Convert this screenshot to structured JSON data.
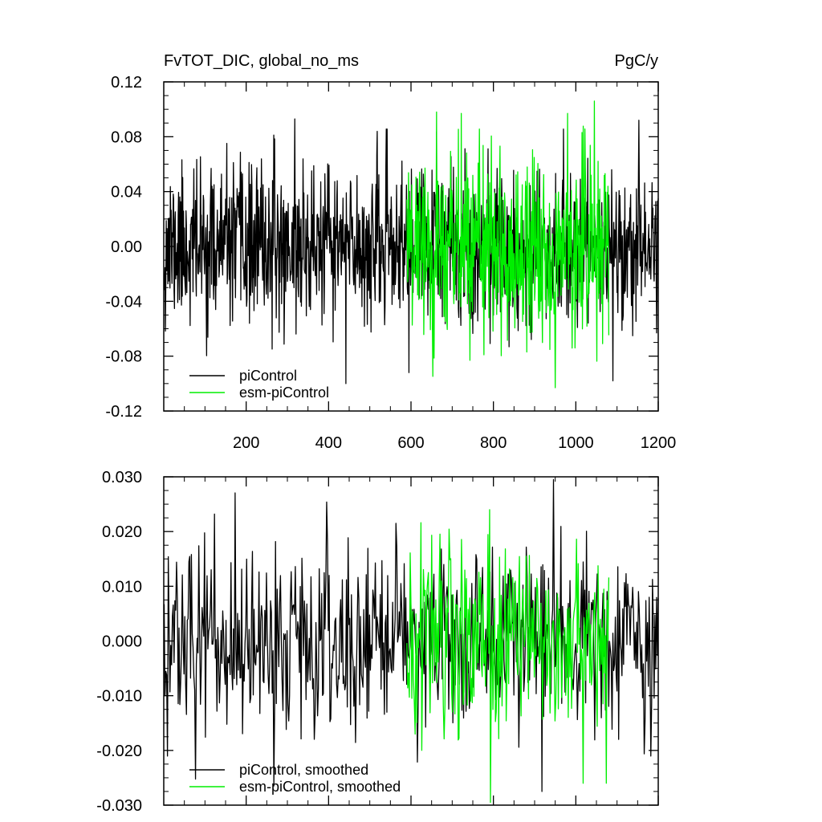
{
  "colors": {
    "piControl": "#000000",
    "esm_piControl": "#00ee00",
    "axis": "#000000",
    "background": "#ffffff"
  },
  "chart_data": [
    {
      "type": "line",
      "title": "FvTOT_DIC, global_no_ms",
      "units": "PgC/y",
      "xlabel": "",
      "ylabel": "",
      "xlim": [
        0,
        1200
      ],
      "ylim": [
        -0.12,
        0.12
      ],
      "xticks": [
        200,
        400,
        600,
        800,
        1000,
        1200
      ],
      "xtick_labels": [
        "200",
        "400",
        "600",
        "800",
        "1000",
        "1200"
      ],
      "yticks": [
        -0.12,
        -0.08,
        -0.04,
        0.0,
        0.04,
        0.08,
        0.12
      ],
      "ytick_labels": [
        "-0.12",
        "-0.08",
        "-0.04",
        "0.00",
        "0.04",
        "0.08",
        "0.12"
      ],
      "grid": false,
      "legend_position": "bottom-left",
      "series": [
        {
          "name": "piControl",
          "color": "#000000",
          "x_start": 1,
          "x_end": 1200,
          "n_points": 1200,
          "mean": 0.0,
          "std": 0.028,
          "min": -0.1,
          "max": 0.093,
          "seed": 11,
          "peaks": [
            [
              442,
              -0.1
            ],
            [
              318,
              0.093
            ],
            [
              1090,
              -0.098
            ],
            [
              1153,
              0.092
            ]
          ]
        },
        {
          "name": "esm-piControl",
          "color": "#00ee00",
          "x_start": 590,
          "x_end": 1080,
          "n_points": 491,
          "mean": 0.0,
          "std": 0.033,
          "min": -0.103,
          "max": 0.106,
          "seed": 29,
          "peaks": [
            [
              1045,
              0.106
            ],
            [
              950,
              -0.103
            ],
            [
              662,
              0.098
            ],
            [
              980,
              0.097
            ]
          ]
        }
      ]
    },
    {
      "type": "line",
      "title": "",
      "xlabel": "",
      "ylabel": "",
      "xlim": [
        0,
        1200
      ],
      "ylim": [
        -0.03,
        0.03
      ],
      "yticks": [
        -0.03,
        -0.02,
        -0.01,
        0.0,
        0.01,
        0.02,
        0.03
      ],
      "ytick_labels": [
        "-0.030",
        "-0.020",
        "-0.010",
        "0.000",
        "0.010",
        "0.020",
        "0.030"
      ],
      "grid": false,
      "legend_position": "bottom-left",
      "series": [
        {
          "name": "piControl, smoothed",
          "color": "#000000",
          "x_start": 1,
          "x_end": 1200,
          "n_points": 600,
          "mean": 0.0,
          "std": 0.0085,
          "min": -0.0275,
          "max": 0.0295,
          "seed": 47,
          "peaks": [
            [
              945,
              0.0295
            ],
            [
              123,
              0.0232
            ],
            [
              268,
              -0.0265
            ],
            [
              918,
              -0.0275
            ]
          ]
        },
        {
          "name": "esm-piControl, smoothed",
          "color": "#00ee00",
          "x_start": 590,
          "x_end": 1080,
          "n_points": 245,
          "mean": 0.0,
          "std": 0.0095,
          "min": -0.0295,
          "max": 0.024,
          "seed": 83,
          "peaks": [
            [
              790,
              0.024
            ],
            [
              793,
              -0.0295
            ],
            [
              1073,
              -0.026
            ],
            [
              1017,
              -0.026
            ]
          ]
        }
      ]
    }
  ]
}
